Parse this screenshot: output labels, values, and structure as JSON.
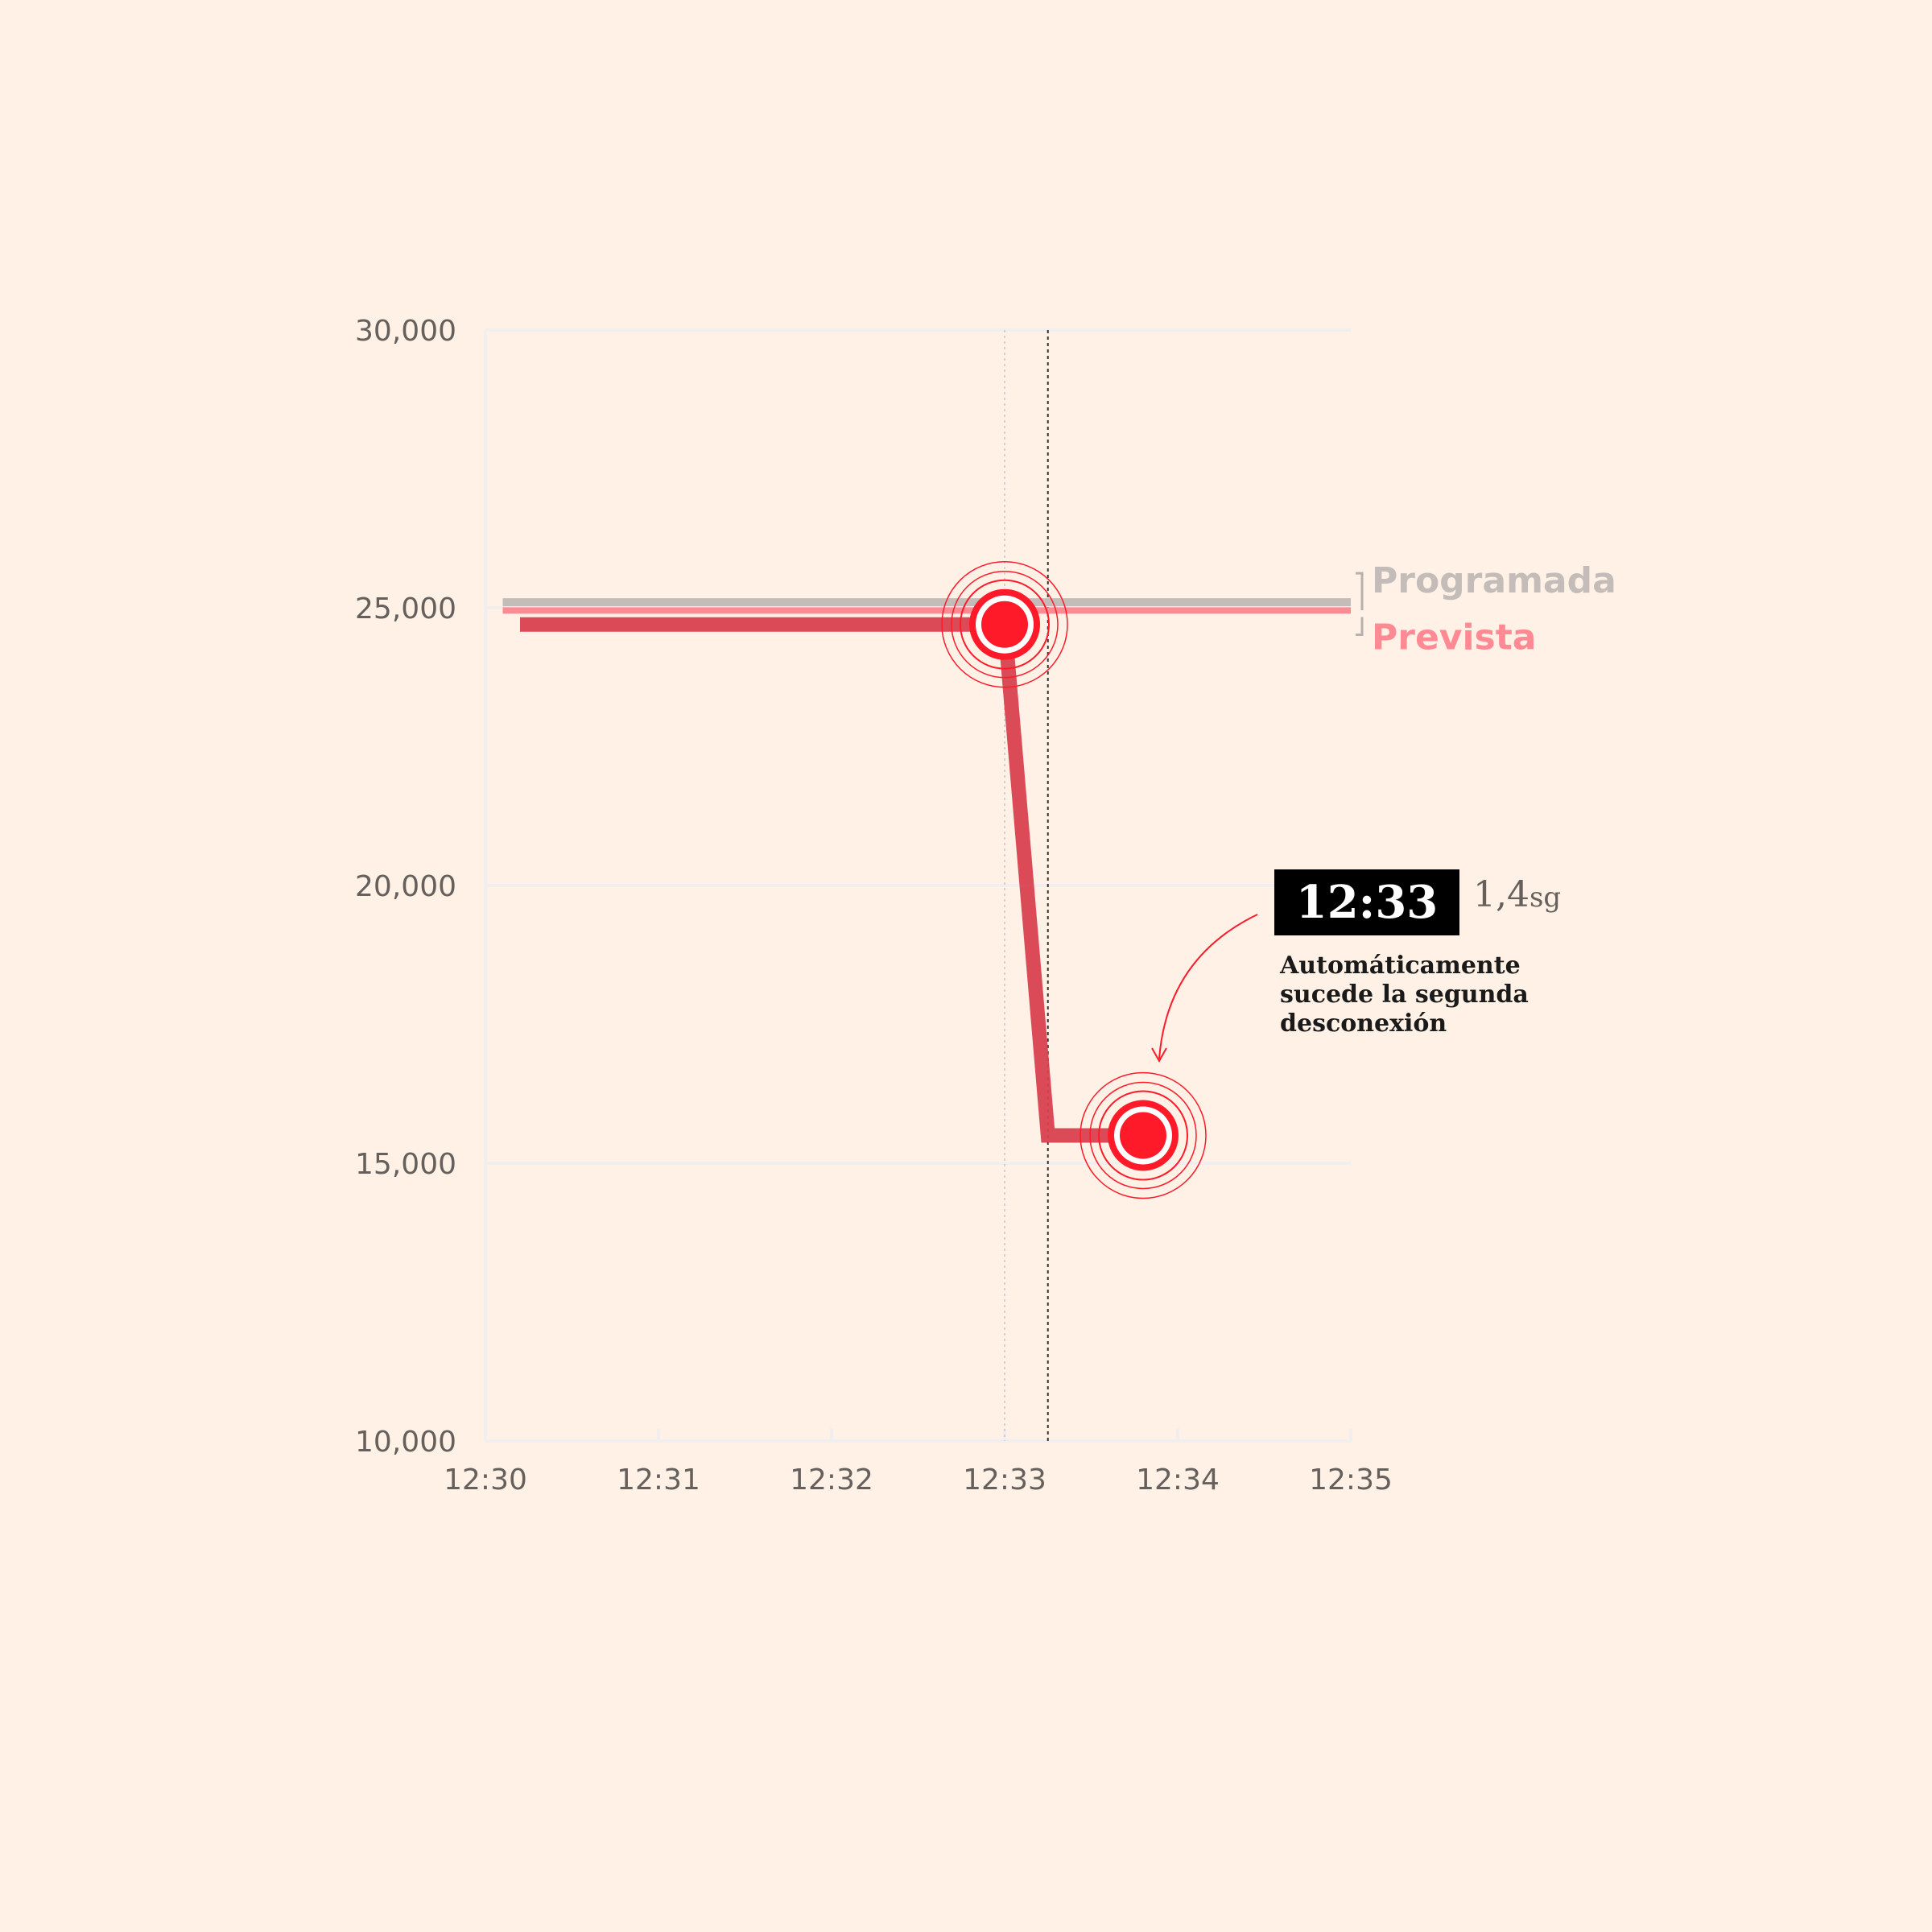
{
  "chart_data": {
    "type": "line",
    "title": "",
    "xlabel": "",
    "ylabel": "",
    "x_ticks": [
      "12:30",
      "12:31",
      "12:32",
      "12:33",
      "12:34",
      "12:35"
    ],
    "y_ticks": [
      "10,000",
      "15,000",
      "20,000",
      "25,000",
      "30,000"
    ],
    "xlim_minutes_after_1230": [
      0,
      5
    ],
    "ylim": [
      10000,
      30000
    ],
    "grid": true,
    "legend_placement": "right, at line ends",
    "series": [
      {
        "name": "Programada",
        "color": "#c4bcb8",
        "points": [
          [
            "12:30.1",
            25100
          ],
          [
            "12:35",
            25100
          ]
        ]
      },
      {
        "name": "Prevista",
        "color": "#ff8a94",
        "points": [
          [
            "12:30.1",
            24950
          ],
          [
            "12:35",
            24950
          ]
        ]
      },
      {
        "name": "",
        "color": "#d9414f",
        "points": [
          [
            "12:30.2",
            24700
          ],
          [
            "12:33",
            24700
          ],
          [
            "12:33.25",
            15500
          ],
          [
            "12:33.8",
            15500
          ]
        ]
      }
    ],
    "markers": [
      {
        "time": "12:33",
        "value": 24700
      },
      {
        "time": "12:33.8",
        "value": 15500
      }
    ],
    "reference_lines": [
      "12:33",
      "12:33.25"
    ],
    "annotation": {
      "time": "12:33",
      "duration_value": "1,4",
      "duration_unit": "sg",
      "lines": [
        "Automáticamente",
        "sucede la segunda",
        "desconexión"
      ]
    }
  },
  "colors": {
    "background": "#fff1e5",
    "accent": "#ff1a2a",
    "grid": "#f0eeee"
  }
}
